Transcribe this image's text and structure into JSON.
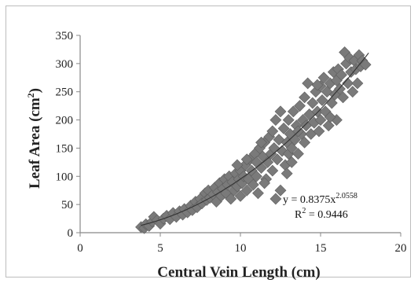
{
  "chart_data": {
    "type": "scatter",
    "title": "",
    "xlabel": "Central Vein Length (cm)",
    "ylabel": {
      "main": "Leaf Area (cm",
      "sup": "2",
      "close": ")"
    },
    "xlim": [
      0,
      20
    ],
    "ylim": [
      0,
      350
    ],
    "xticks": [
      "0",
      "5",
      "10",
      "15",
      "20"
    ],
    "yticks": [
      "0",
      "50",
      "100",
      "150",
      "200",
      "250",
      "300",
      "350"
    ],
    "grid": false,
    "marker": {
      "shape": "diamond",
      "color": "#7a7a7a"
    },
    "trendline": {
      "type": "power",
      "a": 0.8375,
      "b": 2.0558,
      "color": "#333333",
      "equation": {
        "prefix": "y = 0.8375x",
        "exponent": "2.0558"
      },
      "r2": {
        "label": "R",
        "sup": "2",
        "value": " = 0.9446"
      }
    },
    "points": [
      [
        3.8,
        10
      ],
      [
        4.0,
        8
      ],
      [
        4.1,
        15
      ],
      [
        4.3,
        12
      ],
      [
        4.5,
        20
      ],
      [
        4.6,
        28
      ],
      [
        4.8,
        22
      ],
      [
        5.0,
        16
      ],
      [
        5.2,
        25
      ],
      [
        5.4,
        30
      ],
      [
        5.6,
        24
      ],
      [
        5.8,
        35
      ],
      [
        6.0,
        28
      ],
      [
        6.2,
        38
      ],
      [
        6.4,
        32
      ],
      [
        6.5,
        42
      ],
      [
        6.7,
        36
      ],
      [
        6.9,
        48
      ],
      [
        7.0,
        40
      ],
      [
        7.2,
        55
      ],
      [
        7.3,
        45
      ],
      [
        7.5,
        60
      ],
      [
        7.6,
        52
      ],
      [
        7.8,
        70
      ],
      [
        7.9,
        58
      ],
      [
        8.0,
        75
      ],
      [
        8.1,
        62
      ],
      [
        8.3,
        68
      ],
      [
        8.4,
        80
      ],
      [
        8.5,
        55
      ],
      [
        8.6,
        72
      ],
      [
        8.7,
        88
      ],
      [
        8.8,
        65
      ],
      [
        8.9,
        78
      ],
      [
        9.0,
        95
      ],
      [
        9.1,
        70
      ],
      [
        9.2,
        85
      ],
      [
        9.3,
        100
      ],
      [
        9.4,
        60
      ],
      [
        9.5,
        90
      ],
      [
        9.6,
        75
      ],
      [
        9.7,
        105
      ],
      [
        9.8,
        82
      ],
      [
        9.9,
        95
      ],
      [
        10.0,
        110
      ],
      [
        10.0,
        65
      ],
      [
        10.1,
        88
      ],
      [
        10.2,
        100
      ],
      [
        10.3,
        120
      ],
      [
        10.4,
        75
      ],
      [
        10.5,
        95
      ],
      [
        10.6,
        130
      ],
      [
        10.7,
        110
      ],
      [
        10.8,
        85
      ],
      [
        10.9,
        140
      ],
      [
        11.0,
        100
      ],
      [
        11.0,
        125
      ],
      [
        11.1,
        70
      ],
      [
        11.2,
        150
      ],
      [
        11.3,
        115
      ],
      [
        11.4,
        135
      ],
      [
        11.5,
        160
      ],
      [
        11.6,
        95
      ],
      [
        11.7,
        125
      ],
      [
        11.8,
        170
      ],
      [
        11.9,
        140
      ],
      [
        12.0,
        110
      ],
      [
        12.0,
        180
      ],
      [
        12.1,
        150
      ],
      [
        12.2,
        200
      ],
      [
        12.3,
        130
      ],
      [
        12.4,
        165
      ],
      [
        12.5,
        215
      ],
      [
        12.5,
        75
      ],
      [
        12.6,
        145
      ],
      [
        12.7,
        185
      ],
      [
        12.8,
        120
      ],
      [
        12.9,
        160
      ],
      [
        13.0,
        200
      ],
      [
        13.0,
        140
      ],
      [
        13.1,
        175
      ],
      [
        13.2,
        150
      ],
      [
        13.3,
        215
      ],
      [
        13.4,
        165
      ],
      [
        13.5,
        190
      ],
      [
        13.6,
        140
      ],
      [
        13.7,
        225
      ],
      [
        13.8,
        175
      ],
      [
        13.9,
        200
      ],
      [
        14.0,
        160
      ],
      [
        14.0,
        240
      ],
      [
        14.1,
        190
      ],
      [
        14.2,
        265
      ],
      [
        14.3,
        210
      ],
      [
        14.4,
        175
      ],
      [
        14.5,
        230
      ],
      [
        14.6,
        195
      ],
      [
        14.7,
        250
      ],
      [
        14.8,
        215
      ],
      [
        14.9,
        180
      ],
      [
        15.0,
        260
      ],
      [
        15.0,
        200
      ],
      [
        15.1,
        235
      ],
      [
        15.2,
        275
      ],
      [
        15.3,
        215
      ],
      [
        15.4,
        250
      ],
      [
        15.5,
        190
      ],
      [
        15.6,
        265
      ],
      [
        15.7,
        230
      ],
      [
        15.8,
        285
      ],
      [
        15.9,
        245
      ],
      [
        16.0,
        200
      ],
      [
        16.0,
        270
      ],
      [
        16.1,
        290
      ],
      [
        16.2,
        255
      ],
      [
        16.3,
        280
      ],
      [
        16.4,
        240
      ],
      [
        16.5,
        320
      ],
      [
        16.6,
        300
      ],
      [
        16.7,
        265
      ],
      [
        16.8,
        310
      ],
      [
        16.9,
        285
      ],
      [
        17.0,
        250
      ],
      [
        17.1,
        305
      ],
      [
        17.2,
        290
      ],
      [
        17.3,
        265
      ],
      [
        17.4,
        315
      ],
      [
        17.5,
        295
      ],
      [
        17.6,
        305
      ],
      [
        17.8,
        298
      ],
      [
        12.2,
        60
      ],
      [
        11.5,
        88
      ],
      [
        10.4,
        130
      ],
      [
        9.8,
        120
      ],
      [
        13.6,
        180
      ],
      [
        14.8,
        262
      ],
      [
        12.9,
        105
      ],
      [
        15.6,
        205
      ],
      [
        11.3,
        160
      ],
      [
        13.2,
        125
      ]
    ]
  }
}
